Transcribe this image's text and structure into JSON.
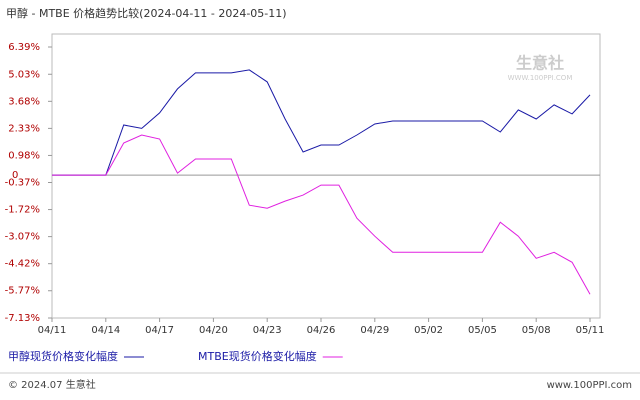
{
  "chart_data": {
    "type": "line",
    "title": "甲醇 - MTBE 价格趋势比较(2024-04-11 - 2024-05-11)",
    "categories": [
      "04/11",
      null,
      null,
      "04/14",
      null,
      null,
      "04/17",
      null,
      null,
      "04/20",
      null,
      null,
      "04/23",
      null,
      null,
      "04/26",
      null,
      null,
      "04/29",
      null,
      null,
      "05/02",
      null,
      null,
      "05/05",
      null,
      null,
      "05/08",
      null,
      null,
      "05/11"
    ],
    "series": [
      {
        "name": "甲醇现货价格变化幅度",
        "color": "#1a1aa6",
        "values": [
          0,
          0,
          0,
          0,
          2.5,
          2.33,
          3.1,
          4.3,
          5.1,
          5.1,
          5.1,
          5.25,
          4.65,
          2.8,
          1.15,
          1.5,
          1.5,
          2.0,
          2.55,
          2.7,
          2.7,
          2.7,
          2.7,
          2.7,
          2.7,
          2.15,
          3.25,
          2.8,
          3.5,
          3.05,
          4.0
        ]
      },
      {
        "name": "MTBE现货价格变化幅度",
        "color": "#e020e0",
        "values": [
          0,
          0,
          0,
          0,
          1.6,
          2.0,
          1.8,
          0.1,
          0.8,
          0.8,
          0.8,
          -1.5,
          -1.65,
          -1.3,
          -1.0,
          -0.5,
          -0.5,
          -2.15,
          -3.05,
          -3.85,
          -3.85,
          -3.85,
          -3.85,
          -3.85,
          -3.85,
          -2.35,
          -3.05,
          -4.15,
          -3.85,
          -4.35,
          -5.95
        ]
      }
    ],
    "ylim": [
      -7.13,
      6.39
    ],
    "yticks": [
      {
        "value": 6.39,
        "label": "6.39%"
      },
      {
        "value": 5.03,
        "label": "5.03%"
      },
      {
        "value": 3.68,
        "label": "3.68%"
      },
      {
        "value": 2.33,
        "label": "2.33%"
      },
      {
        "value": 0.98,
        "label": "0.98%"
      },
      0,
      {
        "value": -0.37,
        "label": "-0.37%"
      },
      {
        "value": -1.72,
        "label": "-1.72%"
      },
      {
        "value": -3.07,
        "label": "-3.07%"
      },
      {
        "value": -4.42,
        "label": "-4.42%"
      },
      {
        "value": -5.77,
        "label": "-5.77%"
      },
      {
        "value": -7.13,
        "label": "-7.13%"
      }
    ],
    "watermark": {
      "name": "生意社",
      "url": "WWW.100PPI.COM"
    },
    "footer": {
      "left": "© 2024.07 生意社",
      "right": "www.100PPI.com"
    }
  }
}
